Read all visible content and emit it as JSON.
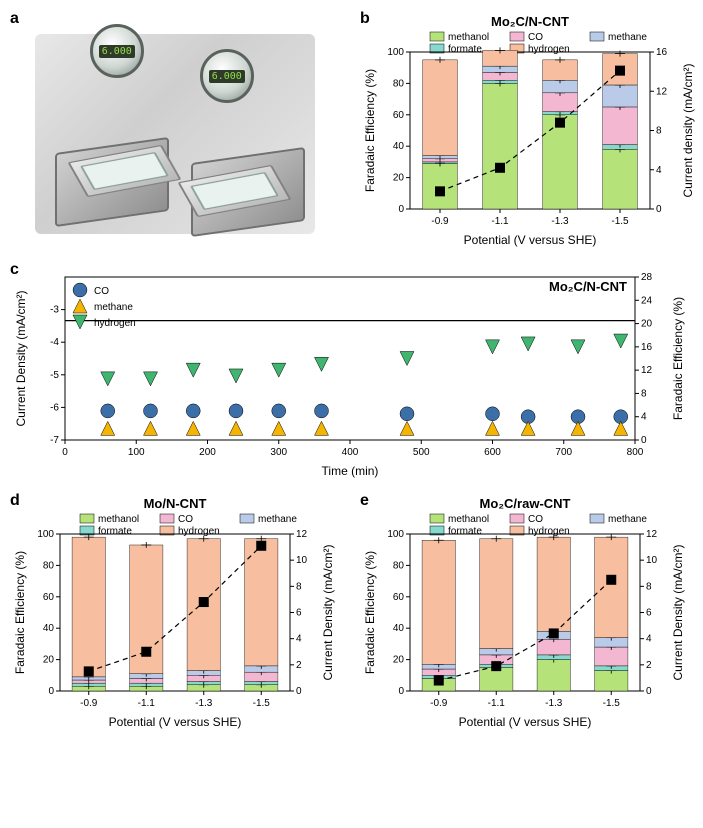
{
  "labels": {
    "a": "a",
    "b": "b",
    "c": "c",
    "d": "d",
    "e": "e"
  },
  "gauge_reading": "6.000",
  "series_colors": {
    "methanol": "#b6e27a",
    "formate": "#86d9cc",
    "CO": "#f4b7d1",
    "methane": "#b9cbe8",
    "hydrogen": "#f7bfa0"
  },
  "marker_sq_color": "#000000",
  "panel_b": {
    "title": "Mo₂C/N-CNT",
    "legend": [
      "methanol",
      "CO",
      "methane",
      "formate",
      "hydrogen"
    ],
    "x_label": "Potential (V versus SHE)",
    "y_left_label": "Faradaic Efficiency (%)",
    "y_right_label": "Current density (mA/cm²)",
    "categories": [
      "-0.9",
      "-1.1",
      "-1.3",
      "-1.5"
    ],
    "ylim_left": [
      0,
      100
    ],
    "ytick_left_step": 20,
    "ylim_right": [
      0,
      16
    ],
    "ytick_right_step": 4,
    "stack_order": [
      "methanol",
      "formate",
      "CO",
      "methane",
      "hydrogen"
    ],
    "stacks": [
      {
        "methanol": 29,
        "formate": 1,
        "CO": 2,
        "methane": 2,
        "hydrogen": 61
      },
      {
        "methanol": 80,
        "formate": 2,
        "CO": 5,
        "methane": 4,
        "hydrogen": 10
      },
      {
        "methanol": 60,
        "formate": 2,
        "CO": 12,
        "methane": 8,
        "hydrogen": 13
      },
      {
        "methanol": 38,
        "formate": 3,
        "CO": 24,
        "methane": 14,
        "hydrogen": 20
      }
    ],
    "current_density": [
      1.8,
      4.2,
      8.8,
      14.1
    ],
    "err": 2.5,
    "bar_width": 0.58,
    "bg": "#ffffff"
  },
  "panel_c": {
    "title": "Mo₂C/N-CNT",
    "x_label": "Time (min)",
    "y_left_label": "Current Density (mA/cm²)",
    "y_right_label": "Faradaic Efficiency (%)",
    "xlim": [
      0,
      800
    ],
    "xtick_step": 100,
    "ylim_left": [
      -7,
      -2
    ],
    "ytick_left": [
      -7,
      -6,
      -5,
      -4,
      -3
    ],
    "ylim_right": [
      0,
      28
    ],
    "ytick_right": [
      0,
      4,
      8,
      12,
      16,
      20,
      24,
      28
    ],
    "legend": [
      {
        "name": "CO",
        "shape": "circle",
        "color": "#3c6fa8"
      },
      {
        "name": "methane",
        "shape": "triangle-up",
        "color": "#f5b400"
      },
      {
        "name": "hydrogen",
        "shape": "triangle-down",
        "color": "#3fb56f"
      }
    ],
    "baseline_y_right": 20.5,
    "baseline_color": "#000000",
    "points": {
      "time": [
        60,
        120,
        180,
        240,
        300,
        360,
        480,
        600,
        650,
        720,
        780
      ],
      "CO_FE": [
        5.0,
        5.0,
        5.0,
        5.0,
        5.0,
        5.0,
        4.5,
        4.5,
        4.0,
        4.0,
        4.0
      ],
      "methane_FE": [
        2.0,
        2.0,
        2.0,
        2.0,
        2.0,
        2.0,
        2.0,
        2.0,
        2.0,
        2.0,
        2.0
      ],
      "hydrogen_FE": [
        10.5,
        10.5,
        12.0,
        11.0,
        12.0,
        13.0,
        14.0,
        16.0,
        16.5,
        16.0,
        17.0
      ]
    },
    "marker_size": 7,
    "bg": "#ffffff"
  },
  "panel_d": {
    "title": "Mo/N-CNT",
    "legend": [
      "methanol",
      "CO",
      "methane",
      "formate",
      "hydrogen"
    ],
    "x_label": "Potential (V versus SHE)",
    "y_left_label": "Faradaic Efficiency (%)",
    "y_right_label": "Current Density (mA/cm²)",
    "categories": [
      "-0.9",
      "-1.1",
      "-1.3",
      "-1.5"
    ],
    "ylim_left": [
      0,
      100
    ],
    "ytick_left_step": 20,
    "ylim_right": [
      0,
      12
    ],
    "ytick_right_step": 2,
    "stack_order": [
      "methanol",
      "formate",
      "CO",
      "methane",
      "hydrogen"
    ],
    "stacks": [
      {
        "methanol": 3,
        "formate": 2,
        "CO": 2,
        "methane": 2,
        "hydrogen": 89
      },
      {
        "methanol": 3,
        "formate": 2,
        "CO": 3,
        "methane": 3,
        "hydrogen": 82
      },
      {
        "methanol": 4,
        "formate": 2,
        "CO": 4,
        "methane": 3,
        "hydrogen": 84
      },
      {
        "methanol": 4,
        "formate": 2,
        "CO": 6,
        "methane": 4,
        "hydrogen": 81
      }
    ],
    "current_density": [
      1.5,
      3.0,
      6.8,
      11.1
    ],
    "err": 2.0,
    "bar_width": 0.58,
    "bg": "#ffffff"
  },
  "panel_e": {
    "title": "Mo₂C/raw-CNT",
    "legend": [
      "methanol",
      "CO",
      "methane",
      "formate",
      "hydrogen"
    ],
    "x_label": "Potential (V versus SHE)",
    "y_left_label": "Faradaic Efficiency (%)",
    "y_right_label": "Current Density (mA/cm²)",
    "categories": [
      "-0.9",
      "-1.1",
      "-1.3",
      "-1.5"
    ],
    "ylim_left": [
      0,
      100
    ],
    "ytick_left_step": 20,
    "ylim_right": [
      0,
      12
    ],
    "ytick_right_step": 2,
    "stack_order": [
      "methanol",
      "formate",
      "CO",
      "methane",
      "hydrogen"
    ],
    "stacks": [
      {
        "methanol": 8,
        "formate": 2,
        "CO": 4,
        "methane": 3,
        "hydrogen": 79
      },
      {
        "methanol": 15,
        "formate": 2,
        "CO": 6,
        "methane": 4,
        "hydrogen": 70
      },
      {
        "methanol": 20,
        "formate": 3,
        "CO": 10,
        "methane": 5,
        "hydrogen": 60
      },
      {
        "methanol": 13,
        "formate": 3,
        "CO": 12,
        "methane": 6,
        "hydrogen": 64
      }
    ],
    "current_density": [
      0.8,
      1.9,
      4.4,
      8.5
    ],
    "err": 2.0,
    "bar_width": 0.58,
    "bg": "#ffffff"
  },
  "axis_color": "#000000",
  "tick_fontsize": 10,
  "label_fontsize": 12,
  "title_fontsize": 13,
  "legend_fontsize": 10
}
